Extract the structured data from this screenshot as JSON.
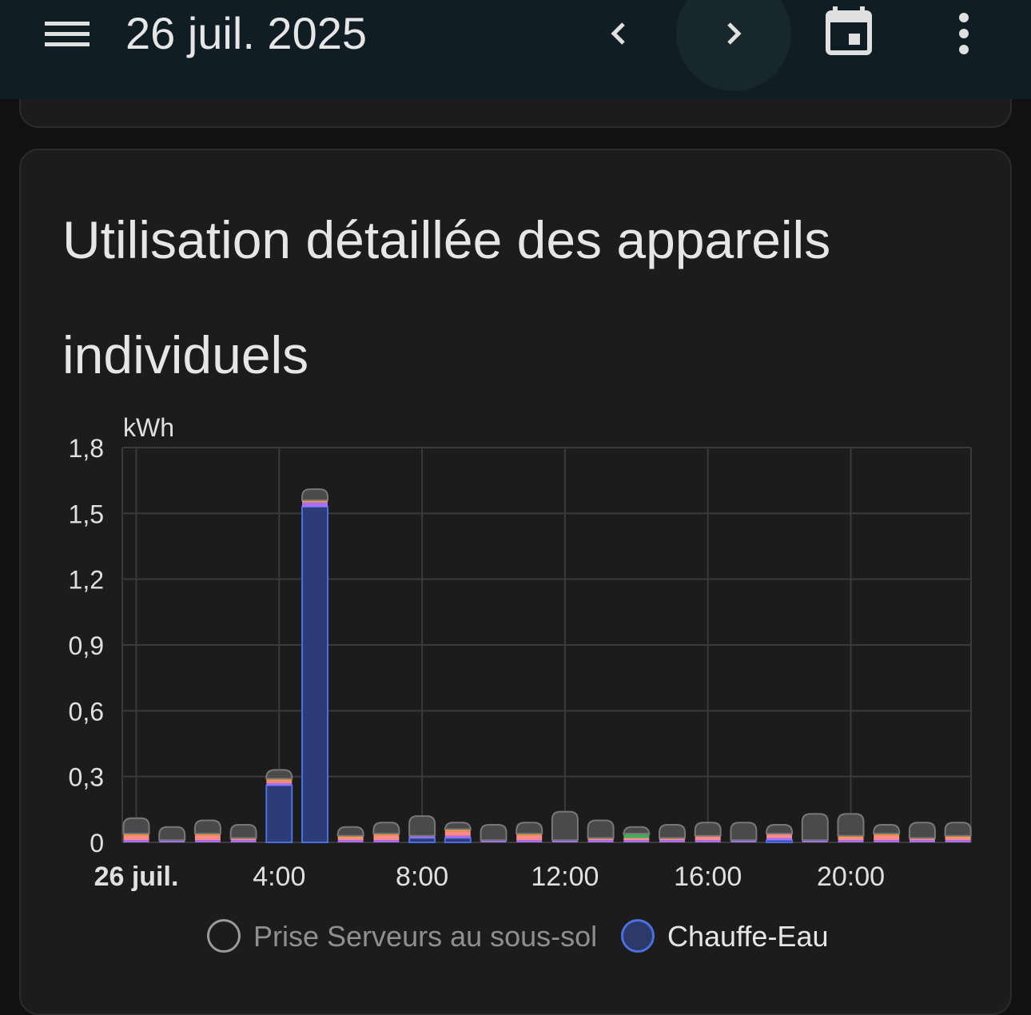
{
  "header": {
    "date": "26 juil. 2025",
    "menu_icon": "hamburger-menu-icon",
    "prev_icon": "chevron-left-icon",
    "next_icon": "chevron-right-icon",
    "calendar_icon": "calendar-icon",
    "more_icon": "more-vert-icon",
    "background_color": "#101d24"
  },
  "card": {
    "title": "Utilisation détaillée des appareils individuels"
  },
  "legend": [
    {
      "label": "Prise Serveurs au sous-sol",
      "color": "#9e9e9e",
      "active": false
    },
    {
      "label": "Chauffe-Eau",
      "color": "#4c6fe0",
      "active": true
    }
  ],
  "chart_data": {
    "type": "bar",
    "stacked": true,
    "unit": "kWh",
    "y_tick_labels": [
      "0",
      "0,3",
      "0,6",
      "0,9",
      "1,2",
      "1,5",
      "1,8"
    ],
    "ylim": [
      0,
      1.8
    ],
    "x_tick_labels": [
      "26 juil.",
      "4:00",
      "8:00",
      "12:00",
      "16:00",
      "20:00"
    ],
    "categories": [
      "0:00",
      "1:00",
      "2:00",
      "3:00",
      "4:00",
      "5:00",
      "6:00",
      "7:00",
      "8:00",
      "9:00",
      "10:00",
      "11:00",
      "12:00",
      "13:00",
      "14:00",
      "15:00",
      "16:00",
      "17:00",
      "18:00",
      "19:00",
      "20:00",
      "21:00",
      "22:00",
      "23:00"
    ],
    "series": [
      {
        "name": "Chauffe-Eau",
        "color": "#4c6fe0",
        "values": [
          0,
          0,
          0,
          0,
          0.26,
          1.53,
          0,
          0,
          0.02,
          0.02,
          0,
          0,
          0,
          0,
          0,
          0,
          0,
          0,
          0.01,
          0,
          0,
          0,
          0,
          0
        ]
      },
      {
        "name": "",
        "color": "#a670ff",
        "values": [
          0.01,
          0.01,
          0.01,
          0.01,
          0.01,
          0.02,
          0.01,
          0.01,
          0.01,
          0.01,
          0.01,
          0.01,
          0.01,
          0.01,
          0.01,
          0.01,
          0.01,
          0.01,
          0.01,
          0.01,
          0.01,
          0.01,
          0.01,
          0.01
        ]
      },
      {
        "name": "",
        "color": "#ff8a8a",
        "values": [
          0.02,
          0,
          0.02,
          0.01,
          0.01,
          0,
          0.01,
          0.02,
          0,
          0.02,
          0,
          0.02,
          0,
          0.01,
          0.01,
          0.01,
          0.02,
          0,
          0.02,
          0,
          0.01,
          0.02,
          0.01,
          0.01
        ]
      },
      {
        "name": "",
        "color": "#3fae5a",
        "values": [
          0,
          0,
          0,
          0,
          0,
          0,
          0,
          0,
          0,
          0,
          0,
          0,
          0,
          0,
          0.02,
          0,
          0,
          0,
          0,
          0,
          0,
          0,
          0,
          0
        ]
      },
      {
        "name": "",
        "color": "#ff9b4a",
        "values": [
          0.01,
          0,
          0.01,
          0,
          0.01,
          0.01,
          0.01,
          0.01,
          0,
          0.01,
          0,
          0.01,
          0,
          0,
          0,
          0,
          0,
          0,
          0,
          0,
          0.01,
          0.01,
          0,
          0.01
        ]
      },
      {
        "name": "Prise Serveurs au sous-sol",
        "color": "#8a8a8a",
        "values": [
          0.07,
          0.06,
          0.06,
          0.06,
          0.04,
          0.05,
          0.04,
          0.05,
          0.09,
          0.03,
          0.07,
          0.05,
          0.13,
          0.08,
          0.03,
          0.06,
          0.06,
          0.08,
          0.04,
          0.12,
          0.1,
          0.04,
          0.07,
          0.06
        ]
      }
    ],
    "legend_position": "bottom",
    "grid": true
  }
}
